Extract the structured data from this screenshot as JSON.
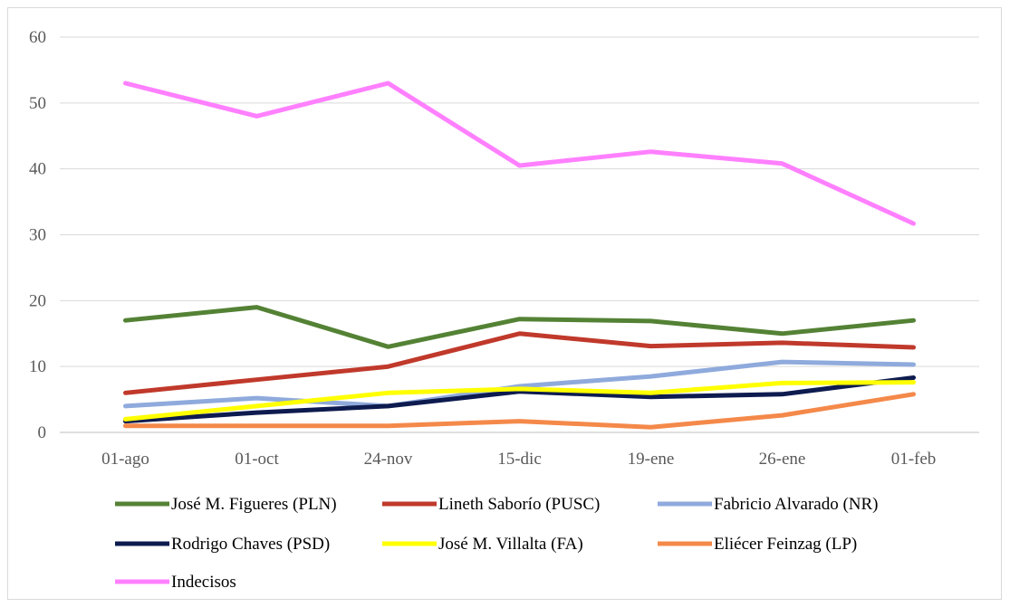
{
  "chart_data": {
    "type": "line",
    "title": "",
    "xlabel": "",
    "ylabel": "",
    "categories": [
      "01-ago",
      "01-oct",
      "24-nov",
      "15-dic",
      "19-ene",
      "26-ene",
      "01-feb"
    ],
    "ylim": [
      0,
      60
    ],
    "yticks": [
      0,
      10,
      20,
      30,
      40,
      50,
      60
    ],
    "grid": "horizontal",
    "legend_position": "bottom",
    "series": [
      {
        "name": "José M. Figueres (PLN)",
        "color": "#548235",
        "values": [
          17,
          19,
          13,
          17.2,
          16.9,
          15,
          17
        ]
      },
      {
        "name": "Lineth Saborío (PUSC)",
        "color": "#c0392b",
        "values": [
          6,
          8,
          10,
          15,
          13.1,
          13.6,
          12.9
        ]
      },
      {
        "name": "Fabricio Alvarado (NR)",
        "color": "#8faadc",
        "values": [
          4,
          5.2,
          4,
          7,
          8.5,
          10.7,
          10.3
        ]
      },
      {
        "name": "Rodrigo Chaves (PSD)",
        "color": "#0d1b4f",
        "values": [
          1.7,
          3,
          4,
          6.2,
          5.4,
          5.8,
          8.3
        ]
      },
      {
        "name": "José M. Villalta (FA)",
        "color": "#ffff00",
        "values": [
          2,
          4,
          6,
          6.6,
          6,
          7.5,
          7.6
        ]
      },
      {
        "name": "Eliécer Feinzag (LP)",
        "color": "#f4894a",
        "values": [
          1,
          1,
          1,
          1.7,
          0.8,
          2.6,
          5.8
        ]
      },
      {
        "name": "Indecisos",
        "color": "#ff80ff",
        "values": [
          53,
          48,
          53,
          40.5,
          42.6,
          40.8,
          31.7
        ]
      }
    ]
  }
}
